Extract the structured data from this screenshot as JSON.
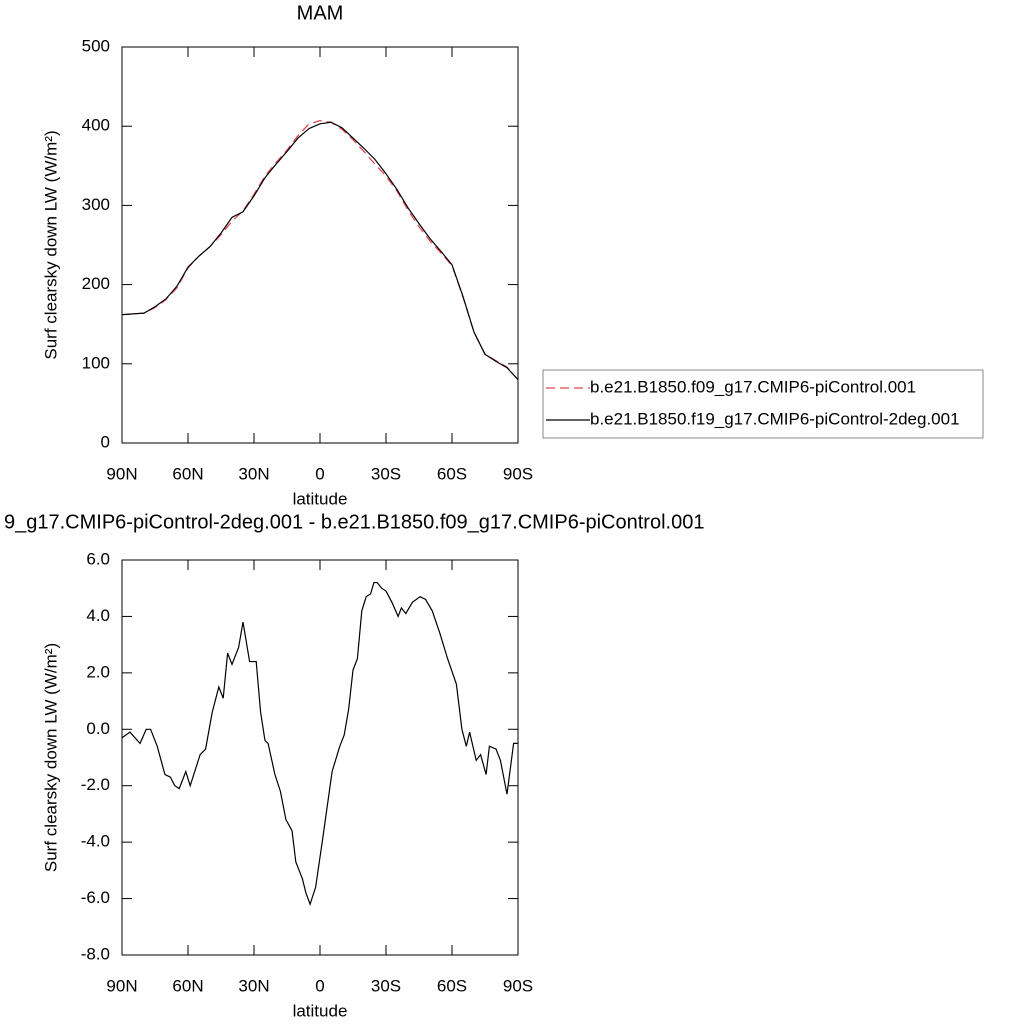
{
  "chart_data": [
    {
      "type": "line",
      "title": "MAM",
      "xlabel": "latitude",
      "ylabel": "Surf clearsky down LW (W/m²)",
      "x": [
        90,
        85,
        80,
        75,
        70,
        65,
        60,
        55,
        50,
        45,
        40,
        35,
        30,
        25,
        20,
        15,
        10,
        5,
        0,
        -5,
        -10,
        -15,
        -20,
        -25,
        -30,
        -35,
        -40,
        -45,
        -50,
        -55,
        -60,
        -65,
        -70,
        -75,
        -80,
        -85,
        -90
      ],
      "xlim": [
        90,
        -90
      ],
      "xticks": [
        {
          "value": 90,
          "label": "90N"
        },
        {
          "value": 60,
          "label": "60N"
        },
        {
          "value": 30,
          "label": "30N"
        },
        0,
        {
          "value": -30,
          "label": "30S"
        },
        {
          "value": -60,
          "label": "60S"
        },
        {
          "value": -90,
          "label": "90S"
        }
      ],
      "ylim": [
        0,
        500
      ],
      "yticks": [
        0,
        100,
        200,
        300,
        400,
        500
      ],
      "legend": "right",
      "series": [
        {
          "name": "b.e21.B1850.f09_g17.CMIP6-piControl.001",
          "color": "#e8404a",
          "line_style": "dashed",
          "values": [
            162,
            163,
            164,
            171,
            181,
            196,
            221,
            236,
            248,
            263,
            280,
            293,
            314,
            337,
            354,
            370,
            388,
            403,
            407,
            405,
            396,
            383,
            368,
            352,
            337,
            318,
            294,
            273,
            255,
            240,
            224,
            184,
            140,
            112,
            104,
            96,
            80
          ]
        },
        {
          "name": "b.e21.B1850.f19_g17.CMIP6-piControl-2deg.001",
          "color": "#000000",
          "line_style": "solid",
          "values": [
            162,
            163,
            164,
            172,
            182,
            198,
            222,
            236,
            248,
            265,
            285,
            292,
            312,
            335,
            352,
            368,
            385,
            397,
            403,
            405,
            398,
            385,
            372,
            358,
            340,
            320,
            297,
            277,
            258,
            242,
            225,
            185,
            140,
            112,
            103,
            95,
            80
          ]
        }
      ]
    },
    {
      "type": "line",
      "title": "9_g17.CMIP6-piControl-2deg.001 - b.e21.B1850.f09_g17.CMIP6-piControl.001",
      "xlabel": "latitude",
      "ylabel": "Surf clearsky down LW (W/m²)",
      "x": [
        90,
        86.4,
        81.8,
        79,
        77,
        74,
        70.5,
        68,
        66,
        64,
        61,
        59,
        54.5,
        52,
        49,
        46,
        44,
        42,
        40,
        37,
        35,
        32,
        29,
        27,
        25,
        23.6,
        20.5,
        18,
        15.5,
        12.7,
        11,
        8,
        6.4,
        4.5,
        2,
        -1,
        -5.5,
        -9,
        -11,
        -13,
        -15,
        -17,
        -19,
        -21,
        -23,
        -24.5,
        -26,
        -28,
        -30,
        -32.7,
        -35.5,
        -37,
        -39,
        -42,
        -45.5,
        -48,
        -51,
        -54.5,
        -58,
        -62,
        -64.5,
        -66.5,
        -68,
        -71,
        -73,
        -75.5,
        -77,
        -80,
        -82,
        -85,
        -87,
        -88,
        -90
      ],
      "xlim": [
        90,
        -90
      ],
      "xticks": [
        {
          "value": 90,
          "label": "90N"
        },
        {
          "value": 60,
          "label": "60N"
        },
        {
          "value": 30,
          "label": "30N"
        },
        0,
        {
          "value": -30,
          "label": "30S"
        },
        {
          "value": -60,
          "label": "60S"
        },
        {
          "value": -90,
          "label": "90S"
        }
      ],
      "ylim": [
        -8,
        6
      ],
      "yticks": [
        {
          "value": -8,
          "label": "-8.0"
        },
        {
          "value": -6,
          "label": "-6.0"
        },
        {
          "value": -4,
          "label": "-4.0"
        },
        {
          "value": -2,
          "label": "-2.0"
        },
        {
          "value": 0,
          "label": "0.0"
        },
        {
          "value": 2,
          "label": "2.0"
        },
        {
          "value": 4,
          "label": "4.0"
        },
        {
          "value": 6,
          "label": "6.0"
        }
      ],
      "series": [
        {
          "color": "#000000",
          "line_style": "solid",
          "values": [
            -0.3,
            -0.1,
            -0.5,
            0.0,
            0.0,
            -0.6,
            -1.6,
            -1.7,
            -2.0,
            -2.1,
            -1.5,
            -2.0,
            -0.9,
            -0.7,
            0.6,
            1.5,
            1.1,
            2.7,
            2.3,
            2.9,
            3.8,
            2.4,
            2.4,
            0.6,
            -0.4,
            -0.5,
            -1.6,
            -2.2,
            -3.2,
            -3.6,
            -4.7,
            -5.3,
            -5.8,
            -6.2,
            -5.6,
            -4.0,
            -1.5,
            -0.6,
            -0.2,
            0.7,
            2.1,
            2.5,
            4.2,
            4.7,
            4.8,
            5.2,
            5.2,
            5.0,
            4.9,
            4.5,
            4.0,
            4.3,
            4.1,
            4.5,
            4.7,
            4.6,
            4.2,
            3.4,
            2.5,
            1.6,
            0.0,
            -0.6,
            -0.1,
            -1.1,
            -0.9,
            -1.6,
            -0.6,
            -0.7,
            -1.1,
            -2.3,
            -1.1,
            -0.5,
            -0.5
          ]
        }
      ]
    }
  ]
}
